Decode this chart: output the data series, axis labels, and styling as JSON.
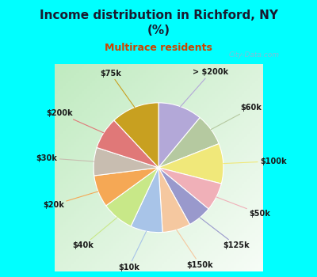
{
  "title": "Income distribution in Richford, NY\n(%)",
  "subtitle": "Multirace residents",
  "labels": [
    "> $200k",
    "$60k",
    "$100k",
    "$50k",
    "$125k",
    "$150k",
    "$10k",
    "$40k",
    "$20k",
    "$30k",
    "$200k",
    "$75k"
  ],
  "values": [
    11,
    8,
    10,
    7,
    6,
    7,
    8,
    8,
    8,
    7,
    8,
    12
  ],
  "colors": [
    "#b3a8d8",
    "#b5c9a0",
    "#f0e87a",
    "#f0b0b8",
    "#9999cc",
    "#f5c8a0",
    "#a8c4e8",
    "#c8e888",
    "#f5a855",
    "#c8bdb0",
    "#e07878",
    "#c8a020"
  ],
  "bg_color": "#00ffff",
  "chart_bg_left": "#b8e8b8",
  "chart_bg_right": "#e8f8e8",
  "title_color": "#1a1a2e",
  "subtitle_color": "#cc4400",
  "label_color": "#1a1a1a",
  "watermark": "City-Data.com"
}
